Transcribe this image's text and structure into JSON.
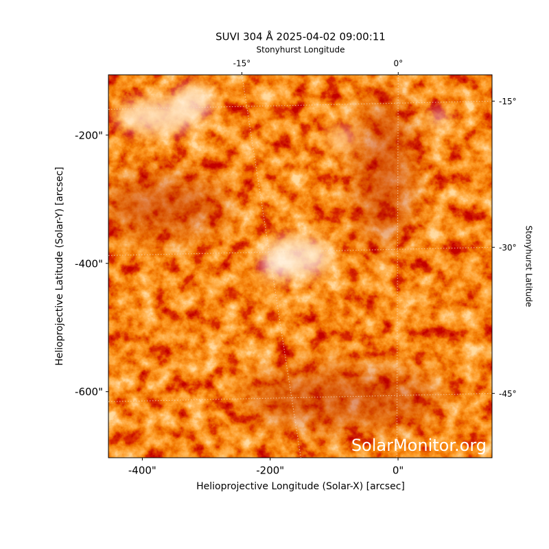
{
  "chart_data": {
    "type": "image",
    "title": "SUVI 304 Å 2025-04-02 09:00:11",
    "xlabel": "Helioprojective Longitude (Solar-X) [arcsec]",
    "ylabel": "Helioprojective Latitude (Solar-Y) [arcsec]",
    "x2label": "Stonyhurst Longitude",
    "y2label": "Stonyhurst Latitude",
    "watermark": "SolarMonitor.org",
    "xlim": [
      -453,
      147
    ],
    "xticks": [
      {
        "value": -400,
        "label": "-400\""
      },
      {
        "value": -200,
        "label": "-200\""
      },
      {
        "value": 0,
        "label": "0\""
      }
    ],
    "ylim": [
      -703,
      -106
    ],
    "yticks": [
      {
        "value": -200,
        "label": "-200\""
      },
      {
        "value": -400,
        "label": "-400\""
      },
      {
        "value": -600,
        "label": "-600\""
      }
    ],
    "x2lim": [
      -27.8,
      9
    ],
    "x2ticks": [
      {
        "value": -15,
        "label": "-15°"
      },
      {
        "value": 0,
        "label": "0°"
      }
    ],
    "y2lim": [
      -12.3,
      -51.6
    ],
    "y2ticks": [
      {
        "value": -15,
        "label": "-15°"
      },
      {
        "value": -30,
        "label": "-30°"
      },
      {
        "value": -45,
        "label": "-45°"
      }
    ]
  }
}
